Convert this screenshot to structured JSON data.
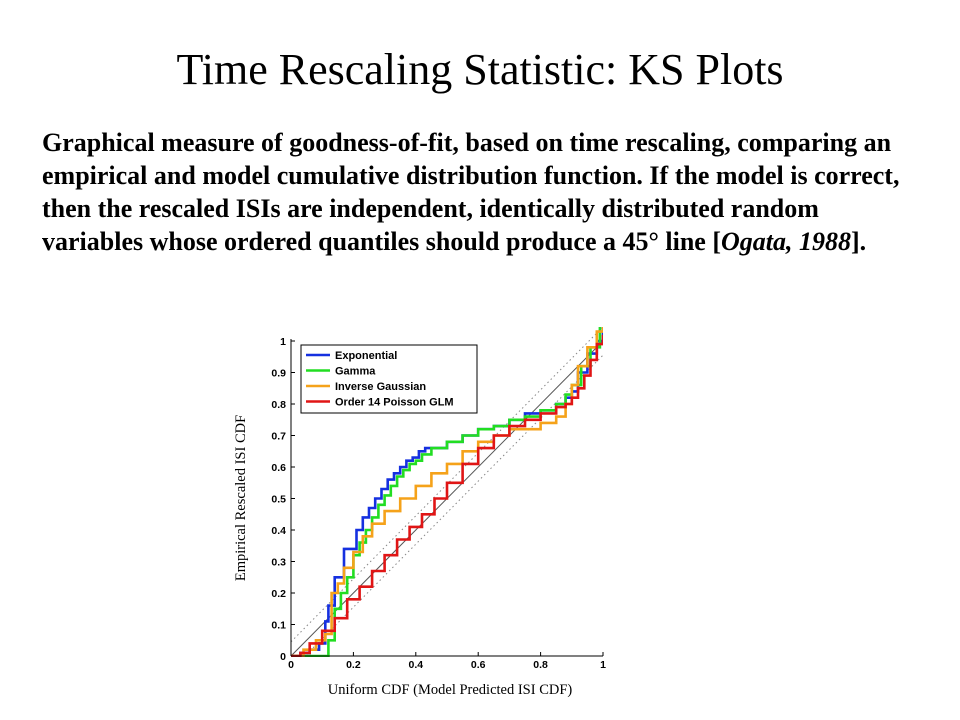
{
  "slide": {
    "title": "Time Rescaling Statistic: KS Plots",
    "body_lead": "Graphical measure of goodness-of-fit, based on time rescaling, comparing an empirical and model cumulative distribution function.  If the model is correct, then the rescaled ISIs are independent, identically distributed random variables whose ordered quantiles should produce a 45° line [",
    "body_citation": "Ogata, 1988",
    "body_tail": "]."
  },
  "chart_data": {
    "type": "line",
    "title": "",
    "xlabel": "Uniform CDF (Model Predicted  ISI CDF)",
    "ylabel": "Empirical Rescaled ISI CDF",
    "xlim": [
      0,
      1
    ],
    "ylim": [
      0,
      1
    ],
    "x_ticks": [
      "0",
      "0.2",
      "0.4",
      "0.6",
      "0.8",
      "1"
    ],
    "y_ticks": [
      "0",
      "0.1",
      "0.2",
      "0.3",
      "0.4",
      "0.5",
      "0.6",
      "0.7",
      "0.8",
      "0.9",
      "1"
    ],
    "grid": false,
    "legend_position": "top-left",
    "reference_lines": {
      "diagonal": {
        "color": "#555555",
        "style": "solid"
      },
      "confidence_offset": 0.045,
      "confidence_color": "#888888",
      "confidence_style": "dotted"
    },
    "series": [
      {
        "name": "Exponential",
        "color": "#1530e0",
        "step": true,
        "x": [
          0,
          0.03,
          0.06,
          0.09,
          0.11,
          0.12,
          0.14,
          0.15,
          0.17,
          0.19,
          0.21,
          0.23,
          0.25,
          0.27,
          0.29,
          0.31,
          0.33,
          0.35,
          0.37,
          0.39,
          0.41,
          0.43,
          0.45,
          0.5,
          0.55,
          0.6,
          0.65,
          0.7,
          0.75,
          0.8,
          0.85,
          0.88,
          0.9,
          0.92,
          0.95,
          0.98,
          1.0
        ],
        "y": [
          0,
          0.01,
          0.02,
          0.04,
          0.11,
          0.16,
          0.25,
          0.25,
          0.34,
          0.34,
          0.4,
          0.44,
          0.47,
          0.5,
          0.53,
          0.56,
          0.58,
          0.6,
          0.62,
          0.63,
          0.65,
          0.66,
          0.66,
          0.68,
          0.7,
          0.72,
          0.73,
          0.75,
          0.77,
          0.78,
          0.8,
          0.82,
          0.84,
          0.9,
          0.96,
          1.0,
          1.05
        ]
      },
      {
        "name": "Gamma",
        "color": "#22dd22",
        "step": true,
        "x": [
          0,
          0.02,
          0.05,
          0.08,
          0.11,
          0.12,
          0.14,
          0.16,
          0.18,
          0.2,
          0.22,
          0.24,
          0.26,
          0.28,
          0.3,
          0.32,
          0.34,
          0.36,
          0.38,
          0.4,
          0.42,
          0.45,
          0.5,
          0.55,
          0.6,
          0.65,
          0.7,
          0.75,
          0.8,
          0.85,
          0.88,
          0.9,
          0.93,
          0.96,
          0.99
        ],
        "y": [
          0,
          0,
          0,
          0,
          0,
          0.05,
          0.15,
          0.2,
          0.25,
          0.32,
          0.36,
          0.4,
          0.44,
          0.48,
          0.51,
          0.54,
          0.57,
          0.59,
          0.61,
          0.62,
          0.64,
          0.66,
          0.68,
          0.7,
          0.72,
          0.73,
          0.75,
          0.76,
          0.78,
          0.8,
          0.83,
          0.86,
          0.92,
          0.98,
          1.05
        ]
      },
      {
        "name": "Inverse Gaussian",
        "color": "#f5a21a",
        "step": true,
        "x": [
          0,
          0.04,
          0.08,
          0.11,
          0.13,
          0.15,
          0.17,
          0.2,
          0.23,
          0.26,
          0.3,
          0.35,
          0.4,
          0.45,
          0.5,
          0.55,
          0.6,
          0.65,
          0.7,
          0.75,
          0.8,
          0.85,
          0.88,
          0.9,
          0.92,
          0.95,
          0.98,
          1.0
        ],
        "y": [
          0,
          0.02,
          0.05,
          0.07,
          0.2,
          0.23,
          0.28,
          0.33,
          0.38,
          0.42,
          0.46,
          0.5,
          0.54,
          0.58,
          0.61,
          0.65,
          0.68,
          0.7,
          0.72,
          0.72,
          0.74,
          0.76,
          0.8,
          0.86,
          0.92,
          0.98,
          1.03,
          1.06
        ]
      },
      {
        "name": "Order 14 Poisson GLM",
        "color": "#e01515",
        "step": true,
        "x": [
          0,
          0.03,
          0.06,
          0.1,
          0.14,
          0.18,
          0.22,
          0.26,
          0.3,
          0.34,
          0.38,
          0.42,
          0.46,
          0.5,
          0.55,
          0.6,
          0.65,
          0.7,
          0.75,
          0.8,
          0.85,
          0.88,
          0.9,
          0.92,
          0.94,
          0.96,
          0.98,
          1.0
        ],
        "y": [
          0,
          0.01,
          0.04,
          0.08,
          0.12,
          0.18,
          0.22,
          0.27,
          0.32,
          0.37,
          0.41,
          0.45,
          0.5,
          0.55,
          0.61,
          0.66,
          0.7,
          0.73,
          0.75,
          0.77,
          0.79,
          0.8,
          0.82,
          0.85,
          0.89,
          0.94,
          0.99,
          1.02
        ]
      }
    ]
  }
}
